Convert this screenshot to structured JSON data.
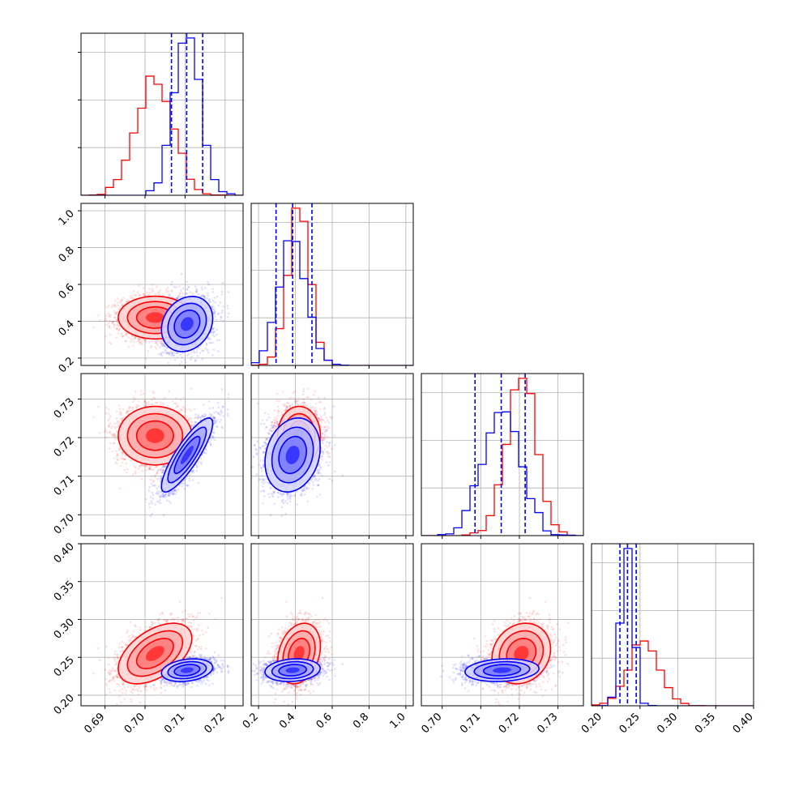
{
  "chart_data": {
    "type": "corner",
    "parameters": [
      {
        "range": [
          0.684,
          0.7245
        ],
        "ticks": [
          "0.69",
          "0.70",
          "0.71",
          "0.72"
        ],
        "tick_values": [
          0.69,
          0.7,
          0.71,
          0.72
        ]
      },
      {
        "range": [
          0.16,
          1.04
        ],
        "ticks": [
          "0.2",
          "0.4",
          "0.6",
          "0.8",
          "1.0"
        ],
        "tick_values": [
          0.2,
          0.4,
          0.6,
          0.8,
          1.0
        ]
      },
      {
        "range": [
          0.6946,
          0.7366
        ],
        "ticks": [
          "0.70",
          "0.71",
          "0.72",
          "0.73"
        ],
        "tick_values": [
          0.7,
          0.71,
          0.72,
          0.73
        ]
      },
      {
        "range": [
          0.186,
          0.4
        ],
        "ticks": [
          "0.20",
          "0.25",
          "0.30",
          "0.35",
          "0.40"
        ],
        "tick_values": [
          0.2,
          0.25,
          0.3,
          0.35,
          0.4
        ]
      }
    ],
    "series": [
      {
        "color": "#ff0000",
        "mean": [
          0.7025,
          0.42,
          0.7205,
          0.255
        ],
        "sd": [
          0.0046,
          0.058,
          0.0038,
          0.02
        ],
        "corr": [
          [
            1,
            0,
            0,
            0.5
          ],
          [
            0,
            1,
            0,
            0.25
          ],
          [
            0,
            0,
            1,
            0.15
          ],
          [
            0.5,
            0.25,
            0.15,
            1
          ]
        ]
      },
      {
        "color": "#0000ff",
        "mean": [
          0.7105,
          0.385,
          0.7155,
          0.233
        ],
        "sd": [
          0.0032,
          0.075,
          0.0048,
          0.0075
        ],
        "corr": [
          [
            1,
            0.2,
            0.85,
            0.25
          ],
          [
            0.2,
            1,
            0.2,
            0.15
          ],
          [
            0.85,
            0.2,
            1,
            0.15
          ],
          [
            0.25,
            0.15,
            0.15,
            1
          ]
        ],
        "quantiles": [
          [
            0.7066,
            0.7104,
            0.7144
          ],
          [
            0.295,
            0.385,
            0.49
          ],
          [
            0.7085,
            0.7153,
            0.7215
          ],
          [
            0.2235,
            0.2335,
            0.245
          ]
        ]
      }
    ],
    "grid": true,
    "legend": "none"
  }
}
